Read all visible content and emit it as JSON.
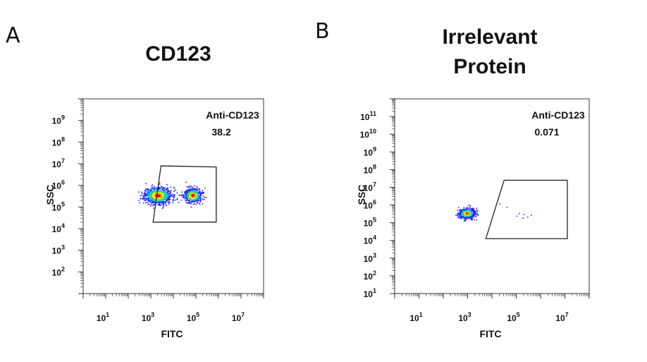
{
  "chart_data": [
    {
      "type": "scatter",
      "panel_letter": "A",
      "title_lines": [
        "CD123"
      ],
      "xlabel": "FITC",
      "ylabel": "SSC",
      "x_scale": "log",
      "y_scale": "log",
      "xlim": [
        1,
        100000000
      ],
      "ylim": [
        10,
        10000000000
      ],
      "x_ticks": [
        "1",
        "3",
        "5",
        "7"
      ],
      "y_ticks": [
        "2",
        "3",
        "4",
        "5",
        "6",
        "7",
        "8",
        "9"
      ],
      "grid": false,
      "gate": {
        "label": "Anti-CD123",
        "value": "38.2",
        "vertices_log": [
          [
            3.45,
            6.9
          ],
          [
            5.9,
            6.85
          ],
          [
            5.9,
            4.3
          ],
          [
            3.1,
            4.3
          ]
        ]
      },
      "populations": [
        {
          "center_log": [
            3.3,
            5.55
          ],
          "spread_log": [
            0.55,
            0.35
          ],
          "count": 850
        },
        {
          "center_log": [
            4.85,
            5.55
          ],
          "spread_log": [
            0.35,
            0.3
          ],
          "count": 550
        }
      ],
      "density_colors": [
        "#2020ff",
        "#00c8ff",
        "#40e040",
        "#ffff00",
        "#ff8000",
        "#ff0000"
      ]
    },
    {
      "type": "scatter",
      "panel_letter": "B",
      "title_lines": [
        "Irrelevant",
        "Protein"
      ],
      "xlabel": "FITC",
      "ylabel": "SSC",
      "x_scale": "log",
      "y_scale": "log",
      "xlim": [
        1,
        100000000
      ],
      "ylim": [
        10,
        1000000000000
      ],
      "x_ticks": [
        "1",
        "3",
        "5",
        "7"
      ],
      "y_ticks": [
        "1",
        "2",
        "3",
        "4",
        "5",
        "6",
        "7",
        "8",
        "9",
        "10",
        "11"
      ],
      "grid": false,
      "gate": {
        "label": "Anti-CD123",
        "value": "0.071",
        "vertices_log": [
          [
            4.5,
            7.4
          ],
          [
            7.1,
            7.4
          ],
          [
            7.1,
            4.1
          ],
          [
            3.75,
            4.1
          ]
        ]
      },
      "populations": [
        {
          "center_log": [
            2.95,
            5.55
          ],
          "spread_log": [
            0.3,
            0.25
          ],
          "count": 700
        }
      ],
      "density_colors": [
        "#2020ff",
        "#00c8ff",
        "#40e040",
        "#ffff00",
        "#ff8000",
        "#ff0000"
      ]
    }
  ]
}
